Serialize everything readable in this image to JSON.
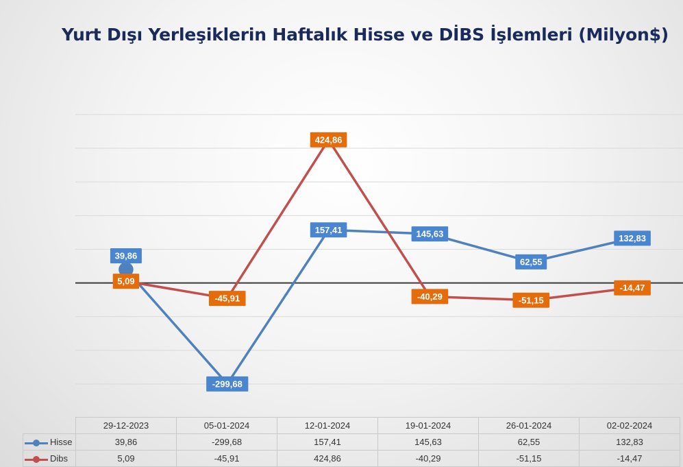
{
  "chart_data": {
    "type": "line",
    "title": "Yurt Dışı Yerleşiklerin Haftalık Hisse ve DİBS İşlemleri (Milyon$)",
    "categories": [
      "29-12-2023",
      "05-01-2024",
      "12-01-2024",
      "19-01-2024",
      "26-01-2024",
      "02-02-2024"
    ],
    "series": [
      {
        "name": "Hisse",
        "color": "#4f81bd",
        "label_color": "#4a86d0",
        "values": [
          39.86,
          -299.68,
          157.41,
          145.63,
          62.55,
          132.83
        ],
        "labels": [
          "39,86",
          "-299,68",
          "157,41",
          "145,63",
          "62,55",
          "132,83"
        ]
      },
      {
        "name": "Dibs",
        "color": "#c0504d",
        "label_color": "#e46c0a",
        "values": [
          5.09,
          -45.91,
          424.86,
          -40.29,
          -51.15,
          -14.47
        ],
        "labels": [
          "5,09",
          "-45,91",
          "424,86",
          "-40,29",
          "-51,15",
          "-14,47"
        ]
      }
    ],
    "ylim": [
      -300,
      500
    ],
    "grid": true,
    "xlabel": "",
    "ylabel": "",
    "legend": "data-table"
  }
}
